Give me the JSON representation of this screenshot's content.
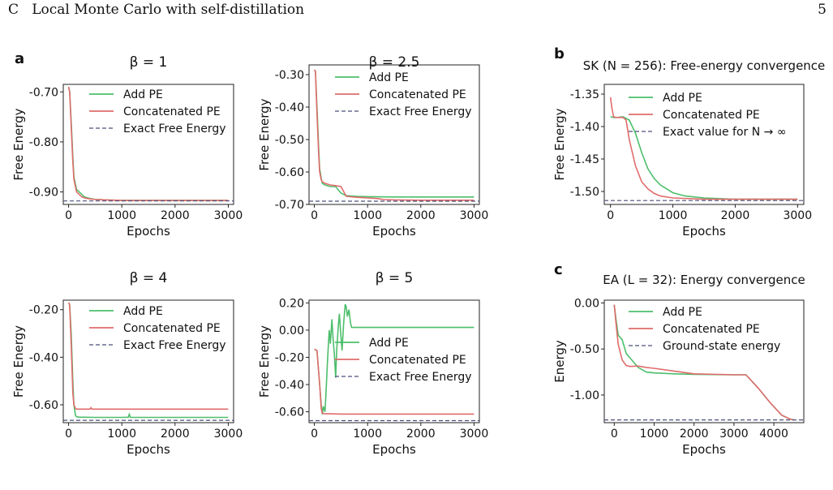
{
  "header": {
    "section": "C   Local Monte Carlo with self-distillation",
    "page_number": "5"
  },
  "colors": {
    "add_pe": "#4dbe6b",
    "concat_pe": "#e06c6c",
    "exact": "#4a4f7a"
  },
  "chart_data": [
    {
      "type": "line",
      "panel_label": "a",
      "title": "β = 1",
      "xlabel": "Epochs",
      "ylabel": "Free Energy",
      "xlim": [
        -100,
        3100
      ],
      "ylim": [
        -0.925,
        -0.685
      ],
      "xticks": [
        0,
        1000,
        2000,
        3000
      ],
      "yticks": [
        -0.7,
        -0.8,
        -0.9
      ],
      "ytick_labels": [
        "-0.70",
        "-0.80",
        "-0.90"
      ],
      "legend_position": "upper-right",
      "series": [
        {
          "name": "Add PE",
          "color": "add_pe",
          "x": [
            0,
            20,
            50,
            80,
            100,
            150,
            200,
            250,
            300,
            400,
            500,
            700,
            1000,
            1500,
            2000,
            3000
          ],
          "y": [
            -0.69,
            -0.7,
            -0.76,
            -0.83,
            -0.87,
            -0.895,
            -0.9,
            -0.905,
            -0.91,
            -0.913,
            -0.915,
            -0.916,
            -0.917,
            -0.917,
            -0.917,
            -0.917
          ]
        },
        {
          "name": "Concatenated PE",
          "color": "concat_pe",
          "x": [
            0,
            20,
            50,
            80,
            100,
            150,
            200,
            250,
            300,
            400,
            500,
            700,
            1000,
            1500,
            2000,
            3000
          ],
          "y": [
            -0.69,
            -0.7,
            -0.77,
            -0.84,
            -0.875,
            -0.9,
            -0.905,
            -0.91,
            -0.912,
            -0.914,
            -0.915,
            -0.916,
            -0.917,
            -0.917,
            -0.917,
            -0.917
          ]
        },
        {
          "name": "Exact Free Energy",
          "color": "exact",
          "dashed": true,
          "x": [
            -100,
            3100
          ],
          "y": [
            -0.918,
            -0.918
          ]
        }
      ]
    },
    {
      "type": "line",
      "title": "β = 2.5",
      "xlabel": "Epochs",
      "ylabel": "Free Energy",
      "xlim": [
        -100,
        3100
      ],
      "ylim": [
        -0.7,
        -0.27
      ],
      "xticks": [
        0,
        1000,
        2000,
        3000
      ],
      "yticks": [
        -0.3,
        -0.4,
        -0.5,
        -0.6,
        -0.7
      ],
      "ytick_labels": [
        "-0.30",
        "-0.40",
        "-0.50",
        "-0.60",
        "-0.70"
      ],
      "legend_position": "upper-right",
      "series": [
        {
          "name": "Add PE",
          "color": "add_pe",
          "x": [
            0,
            20,
            50,
            80,
            100,
            130,
            150,
            200,
            300,
            400,
            500,
            600,
            800,
            1000,
            1500,
            2000,
            3000
          ],
          "y": [
            -0.285,
            -0.29,
            -0.4,
            -0.52,
            -0.59,
            -0.62,
            -0.635,
            -0.64,
            -0.645,
            -0.645,
            -0.665,
            -0.673,
            -0.675,
            -0.676,
            -0.677,
            -0.677,
            -0.677
          ]
        },
        {
          "name": "Concatenated PE",
          "color": "concat_pe",
          "x": [
            0,
            20,
            50,
            80,
            100,
            130,
            150,
            200,
            300,
            400,
            500,
            600,
            800,
            1000,
            1200,
            1300,
            1500,
            2000,
            3000
          ],
          "y": [
            -0.285,
            -0.29,
            -0.42,
            -0.54,
            -0.6,
            -0.625,
            -0.63,
            -0.635,
            -0.64,
            -0.642,
            -0.645,
            -0.675,
            -0.678,
            -0.68,
            -0.682,
            -0.685,
            -0.686,
            -0.687,
            -0.687
          ]
        },
        {
          "name": "Exact Free Energy",
          "color": "exact",
          "dashed": true,
          "x": [
            -100,
            3100
          ],
          "y": [
            -0.69,
            -0.69
          ]
        }
      ]
    },
    {
      "type": "line",
      "title": "β = 4",
      "xlabel": "Epochs",
      "ylabel": "Free Energy",
      "xlim": [
        -100,
        3100
      ],
      "ylim": [
        -0.675,
        -0.16
      ],
      "xticks": [
        0,
        1000,
        2000,
        3000
      ],
      "yticks": [
        -0.2,
        -0.4,
        -0.6
      ],
      "ytick_labels": [
        "-0.20",
        "-0.40",
        "-0.60"
      ],
      "legend_position": "upper-right",
      "series": [
        {
          "name": "Add PE",
          "color": "add_pe",
          "x": [
            0,
            20,
            50,
            80,
            100,
            130,
            150,
            200,
            300,
            500,
            1000,
            1120,
            1140,
            1160,
            1500,
            2000,
            3000
          ],
          "y": [
            -0.17,
            -0.18,
            -0.3,
            -0.5,
            -0.6,
            -0.645,
            -0.65,
            -0.652,
            -0.652,
            -0.653,
            -0.653,
            -0.652,
            -0.64,
            -0.653,
            -0.653,
            -0.653,
            -0.653
          ]
        },
        {
          "name": "Concatenated PE",
          "color": "concat_pe",
          "x": [
            0,
            20,
            50,
            80,
            100,
            130,
            150,
            200,
            400,
            420,
            440,
            500,
            1000,
            2000,
            3000
          ],
          "y": [
            -0.17,
            -0.18,
            -0.35,
            -0.55,
            -0.6,
            -0.615,
            -0.618,
            -0.618,
            -0.618,
            -0.612,
            -0.618,
            -0.618,
            -0.618,
            -0.618,
            -0.618
          ]
        },
        {
          "name": "Exact Free Energy",
          "color": "exact",
          "dashed": true,
          "x": [
            -100,
            3100
          ],
          "y": [
            -0.665,
            -0.665
          ]
        }
      ]
    },
    {
      "type": "line",
      "title": "β = 5",
      "xlabel": "Epochs",
      "ylabel": "Free Energy",
      "xlim": [
        -100,
        3100
      ],
      "ylim": [
        -0.68,
        0.22
      ],
      "xticks": [
        0,
        1000,
        2000,
        3000
      ],
      "yticks": [
        0.2,
        0.0,
        -0.2,
        -0.4,
        -0.6
      ],
      "ytick_labels": [
        "0.20",
        "0.00",
        "-0.20",
        "-0.40",
        "-0.60"
      ],
      "legend_position": "center-right",
      "series": [
        {
          "name": "Add PE",
          "color": "add_pe",
          "x": [
            0,
            50,
            100,
            130,
            150,
            170,
            200,
            220,
            250,
            280,
            300,
            330,
            350,
            380,
            400,
            420,
            450,
            470,
            500,
            520,
            550,
            580,
            600,
            620,
            650,
            680,
            700,
            3000
          ],
          "y": [
            -0.14,
            -0.15,
            -0.4,
            -0.55,
            -0.62,
            -0.56,
            -0.6,
            -0.45,
            -0.2,
            0.0,
            -0.1,
            0.08,
            -0.05,
            -0.2,
            -0.35,
            -0.15,
            0.03,
            0.12,
            -0.05,
            -0.15,
            0.05,
            0.19,
            0.17,
            0.1,
            0.15,
            0.05,
            0.02,
            0.02
          ]
        },
        {
          "name": "Concatenated PE",
          "color": "concat_pe",
          "x": [
            0,
            50,
            100,
            130,
            150,
            200,
            300,
            500,
            1000,
            2000,
            3000
          ],
          "y": [
            -0.14,
            -0.15,
            -0.4,
            -0.58,
            -0.61,
            -0.615,
            -0.615,
            -0.617,
            -0.617,
            -0.617,
            -0.617
          ]
        },
        {
          "name": "Exact Free Energy",
          "color": "exact",
          "dashed": true,
          "x": [
            -100,
            3100
          ],
          "y": [
            -0.665,
            -0.665
          ]
        }
      ]
    },
    {
      "type": "line",
      "panel_label": "b",
      "title": "SK (N = 256): Free-energy convergence",
      "xlabel": "Epochs",
      "ylabel": "Free Energy",
      "xlim": [
        -100,
        3100
      ],
      "ylim": [
        -1.52,
        -1.335
      ],
      "xticks": [
        0,
        1000,
        2000,
        3000
      ],
      "yticks": [
        -1.35,
        -1.4,
        -1.45,
        -1.5
      ],
      "ytick_labels": [
        "-1.35",
        "-1.40",
        "-1.45",
        "-1.50"
      ],
      "legend_position": "upper-right",
      "series": [
        {
          "name": "Add PE",
          "color": "add_pe",
          "x": [
            0,
            50,
            100,
            200,
            300,
            400,
            500,
            600,
            700,
            800,
            1000,
            1200,
            1500,
            2000,
            2500,
            3000
          ],
          "y": [
            -1.385,
            -1.386,
            -1.386,
            -1.385,
            -1.39,
            -1.41,
            -1.44,
            -1.465,
            -1.48,
            -1.49,
            -1.502,
            -1.507,
            -1.51,
            -1.512,
            -1.512,
            -1.512
          ]
        },
        {
          "name": "Concatenated PE",
          "color": "concat_pe",
          "x": [
            0,
            20,
            50,
            100,
            200,
            250,
            300,
            400,
            500,
            600,
            700,
            800,
            1000,
            1500,
            2000,
            3000
          ],
          "y": [
            -1.355,
            -1.37,
            -1.385,
            -1.386,
            -1.386,
            -1.39,
            -1.42,
            -1.46,
            -1.485,
            -1.496,
            -1.503,
            -1.507,
            -1.51,
            -1.512,
            -1.512,
            -1.512
          ]
        },
        {
          "name": "Exact value for N → ∞",
          "color": "exact",
          "dashed": true,
          "x": [
            -100,
            3100
          ],
          "y": [
            -1.514,
            -1.514
          ]
        }
      ]
    },
    {
      "type": "line",
      "panel_label": "c",
      "title": "EA (L = 32): Energy convergence",
      "xlabel": "Epochs",
      "ylabel": "Energy",
      "xlim": [
        -250,
        4750
      ],
      "ylim": [
        -1.3,
        0.03
      ],
      "xticks": [
        0,
        1000,
        2000,
        3000,
        4000
      ],
      "yticks": [
        0.0,
        -0.5,
        -1.0
      ],
      "ytick_labels": [
        "0.00",
        "-0.50",
        "-1.00"
      ],
      "legend_position": "upper-right",
      "series": [
        {
          "name": "Add PE",
          "color": "add_pe",
          "x": [
            0,
            50,
            100,
            200,
            300,
            400,
            600,
            800,
            1000,
            1500,
            2000,
            3000,
            3300,
            3600,
            3900,
            4200,
            4400,
            4500
          ],
          "y": [
            -0.02,
            -0.2,
            -0.35,
            -0.4,
            -0.55,
            -0.6,
            -0.7,
            -0.75,
            -0.76,
            -0.77,
            -0.775,
            -0.78,
            -0.78,
            -0.92,
            -1.08,
            -1.22,
            -1.26,
            -1.27
          ]
        },
        {
          "name": "Concatenated PE",
          "color": "concat_pe",
          "x": [
            0,
            50,
            100,
            200,
            300,
            400,
            600,
            800,
            1000,
            1500,
            2000,
            3000,
            3300,
            3600,
            3900,
            4200,
            4400,
            4500
          ],
          "y": [
            -0.02,
            -0.25,
            -0.45,
            -0.62,
            -0.68,
            -0.69,
            -0.685,
            -0.7,
            -0.71,
            -0.74,
            -0.77,
            -0.78,
            -0.78,
            -0.92,
            -1.08,
            -1.22,
            -1.26,
            -1.27
          ]
        },
        {
          "name": "Ground-state energy",
          "color": "exact",
          "dashed": true,
          "x": [
            -250,
            4750
          ],
          "y": [
            -1.27,
            -1.27
          ]
        }
      ]
    }
  ]
}
